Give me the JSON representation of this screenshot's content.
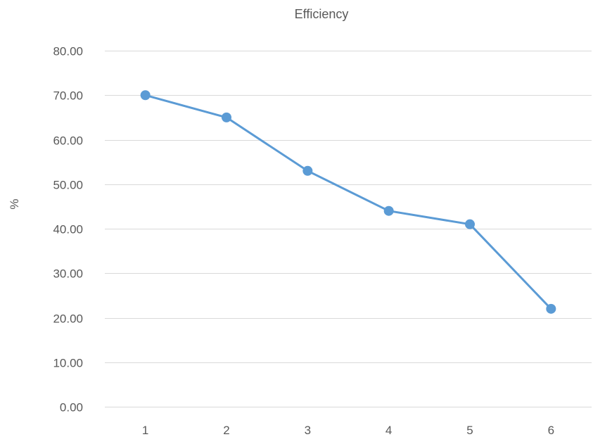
{
  "chart_data": {
    "type": "line",
    "title": "Efficiency",
    "xlabel": "",
    "ylabel": "%",
    "categories": [
      "1",
      "2",
      "3",
      "4",
      "5",
      "6"
    ],
    "series": [
      {
        "values": [
          70,
          65,
          53,
          44,
          41,
          22
        ],
        "color": "#5b9bd5",
        "marker": "circle"
      }
    ],
    "ylim": [
      0,
      80
    ],
    "yticks": [
      "0.00",
      "10.00",
      "20.00",
      "30.00",
      "40.00",
      "50.00",
      "60.00",
      "70.00",
      "80.00"
    ],
    "grid": true,
    "legend": "none"
  }
}
